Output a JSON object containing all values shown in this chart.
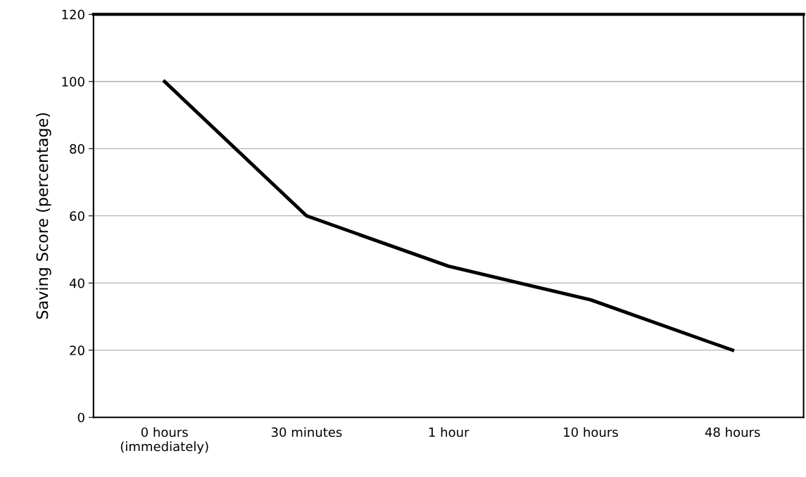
{
  "chart_data": {
    "type": "line",
    "ylabel": "Saving Score (percentage)",
    "categories": [
      "0 hours\n(immediately)",
      "30 minutes",
      "1 hour",
      "10 hours",
      "48 hours"
    ],
    "series": [
      {
        "color": "#000000",
        "values": [
          100,
          60,
          45,
          35,
          20
        ]
      }
    ],
    "ylim": [
      0,
      120
    ],
    "yticks": [
      0,
      20,
      40,
      60,
      80,
      100,
      120
    ],
    "grid": "y",
    "marker": "none",
    "line_style": "solid",
    "legend": false
  }
}
